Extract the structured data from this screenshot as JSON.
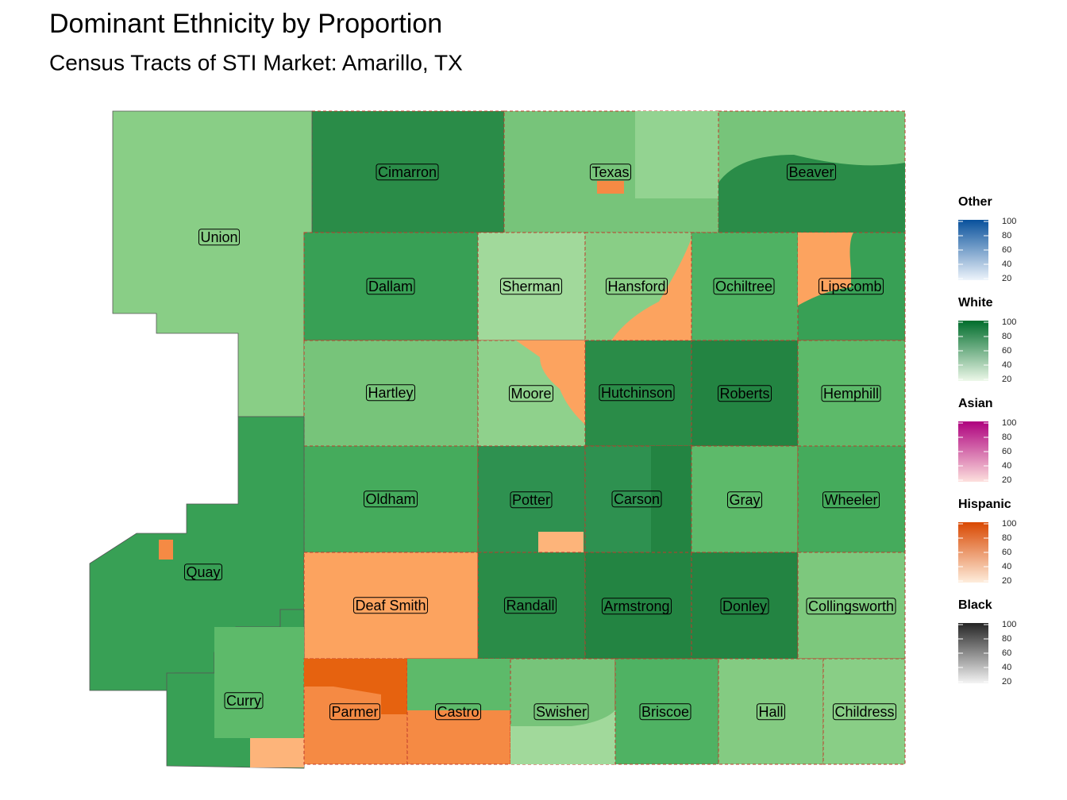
{
  "header": {
    "title": "Dominant Ethnicity by Proportion",
    "subtitle": "Census Tracts of STI Market: Amarillo, TX"
  },
  "counties": [
    "Cimarron",
    "Texas",
    "Beaver",
    "Union",
    "Dallam",
    "Sherman",
    "Hansford",
    "Ochiltree",
    "Lipscomb",
    "Hartley",
    "Moore",
    "Hutchinson",
    "Roberts",
    "Hemphill",
    "Oldham",
    "Potter",
    "Carson",
    "Gray",
    "Wheeler",
    "Quay",
    "Deaf Smith",
    "Randall",
    "Armstrong",
    "Donley",
    "Collingsworth",
    "Curry",
    "Parmer",
    "Castro",
    "Swisher",
    "Briscoe",
    "Hall",
    "Childress"
  ],
  "legend": [
    {
      "title": "Other",
      "colors": [
        "#eef4fb",
        "#08519c"
      ],
      "ticks": [
        20,
        40,
        60,
        80,
        100
      ]
    },
    {
      "title": "White",
      "colors": [
        "#edf8e9",
        "#006d2c"
      ],
      "ticks": [
        20,
        40,
        60,
        80,
        100
      ]
    },
    {
      "title": "Asian",
      "colors": [
        "#fde0dd",
        "#ae017e"
      ],
      "ticks": [
        20,
        40,
        60,
        80,
        100
      ]
    },
    {
      "title": "Hispanic",
      "colors": [
        "#feeddc",
        "#d94801"
      ],
      "ticks": [
        20,
        40,
        60,
        80,
        100
      ]
    },
    {
      "title": "Black",
      "colors": [
        "#f4f4f4",
        "#252525"
      ],
      "ticks": [
        20,
        40,
        60,
        80,
        100
      ]
    }
  ]
}
